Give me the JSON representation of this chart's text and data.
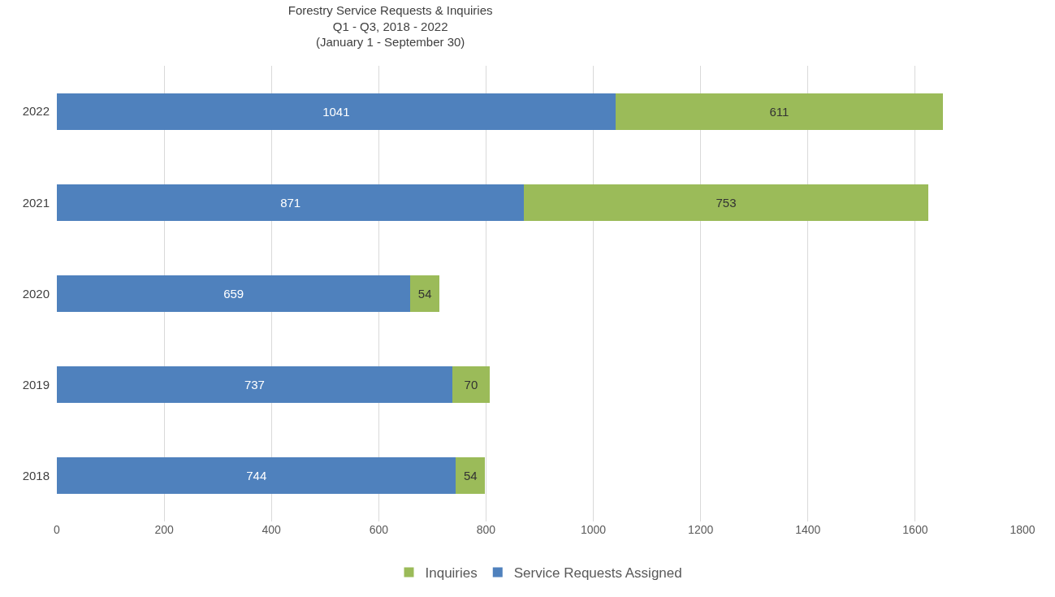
{
  "chart_data": {
    "type": "bar",
    "orientation": "horizontal",
    "stacked": true,
    "title": "Forestry Service Requests & Inquiries\nQ1 - Q3, 2018 - 2022\n(January 1 - September 30)",
    "categories": [
      "2022",
      "2021",
      "2020",
      "2019",
      "2018"
    ],
    "series": [
      {
        "name": "Service Requests Assigned",
        "color": "#4f81bd",
        "values": [
          1041,
          871,
          659,
          737,
          744
        ]
      },
      {
        "name": "Inquiries",
        "color": "#9bbb59",
        "values": [
          611,
          753,
          54,
          70,
          54
        ]
      }
    ],
    "xlim": [
      0,
      1800
    ],
    "xticks": [
      0,
      200,
      400,
      600,
      800,
      1000,
      1200,
      1400,
      1600,
      1800
    ],
    "grid": "x",
    "legend": "bottom",
    "data_labels": true
  }
}
